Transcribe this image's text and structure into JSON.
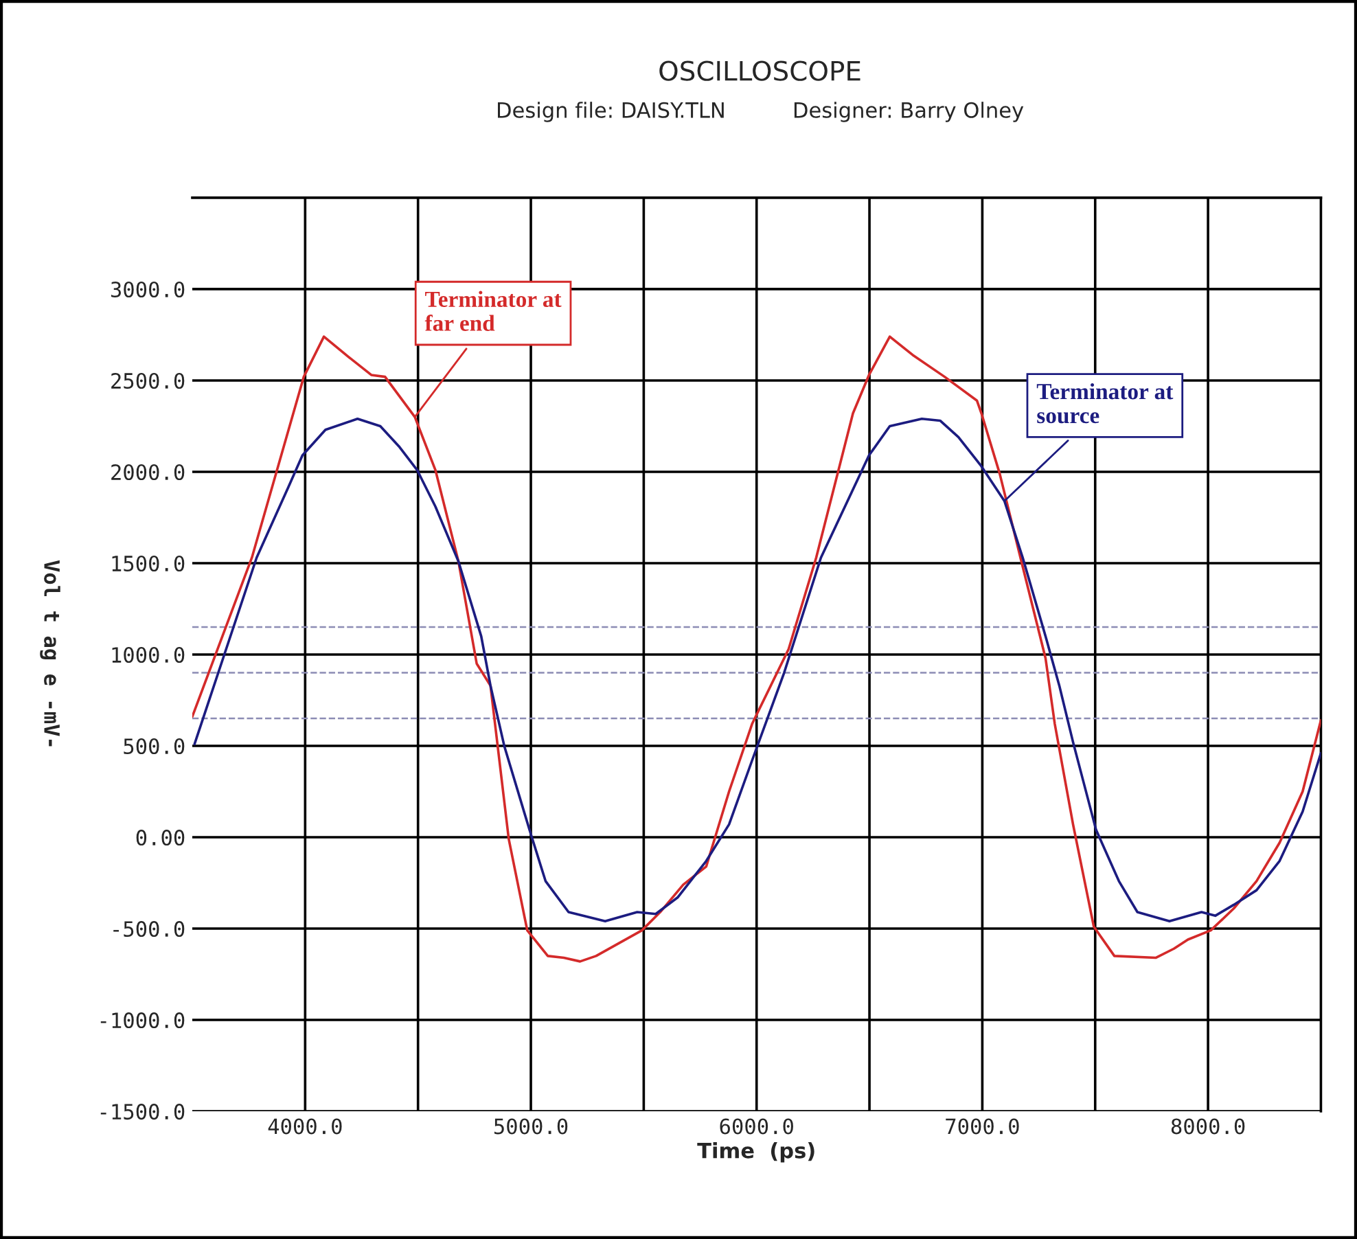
{
  "chart_data": {
    "type": "line",
    "title": "OSCILLOSCOPE",
    "subtitle": "Design file: DAISY.TLN          Designer: Barry Olney",
    "xlabel": "Time  (ps)",
    "ylabel": "Vol t ag e -mV-",
    "xlim": [
      3500,
      8500
    ],
    "ylim": [
      -1500,
      3500
    ],
    "xticks": [
      {
        "value": 4000,
        "label": "4000.0"
      },
      {
        "value": 4500,
        "label": null
      },
      {
        "value": 5000,
        "label": "5000.0"
      },
      {
        "value": 5500,
        "label": null
      },
      {
        "value": 6000,
        "label": "6000.0"
      },
      {
        "value": 6500,
        "label": null
      },
      {
        "value": 7000,
        "label": "7000.0"
      },
      {
        "value": 7500,
        "label": null
      },
      {
        "value": 8000,
        "label": "8000.0"
      }
    ],
    "yticks": [
      {
        "value": -1500,
        "label": "-1500.0"
      },
      {
        "value": -1000,
        "label": "-1000.0"
      },
      {
        "value": -500,
        "label": "-500.0"
      },
      {
        "value": 0,
        "label": "0.00"
      },
      {
        "value": 500,
        "label": "500.0"
      },
      {
        "value": 1000,
        "label": "1000.0"
      },
      {
        "value": 1500,
        "label": "1500.0"
      },
      {
        "value": 2000,
        "label": "2000.0"
      },
      {
        "value": 2500,
        "label": "2500.0"
      },
      {
        "value": 3000,
        "label": "3000.0"
      }
    ],
    "grid": true,
    "line_style": "solid",
    "ref_lines": [
      {
        "axis": "y",
        "value": 1150,
        "color": "#8c8cb4",
        "line_style": "dashed"
      },
      {
        "axis": "y",
        "value": 900,
        "color": "#8c8cb4",
        "line_style": "dashed"
      },
      {
        "axis": "y",
        "value": 650,
        "color": "#8c8cb4",
        "line_style": "dashed"
      }
    ],
    "series": [
      {
        "name": "Terminator at\nfar end",
        "color": "#d42a2a",
        "x": [
          3500,
          3764,
          3994,
          4083,
          4191,
          4293,
          4354,
          4486,
          4577,
          4679,
          4760,
          4821,
          4902,
          4984,
          5075,
          5146,
          5218,
          5289,
          5492,
          5573,
          5675,
          5777,
          5878,
          5980,
          6142,
          6264,
          6427,
          6498,
          6590,
          6691,
          6833,
          6976,
          6996,
          7077,
          7179,
          7280,
          7321,
          7402,
          7494,
          7585,
          7768,
          7849,
          7911,
          8012,
          8114,
          8215,
          8317,
          8419,
          8500
        ],
        "values": [
          660,
          1530,
          2520,
          2740,
          2630,
          2530,
          2520,
          2300,
          2010,
          1510,
          950,
          830,
          -10,
          -510,
          -650,
          -660,
          -680,
          -650,
          -510,
          -410,
          -260,
          -160,
          250,
          620,
          1030,
          1530,
          2320,
          2530,
          2740,
          2640,
          2520,
          2390,
          2320,
          1990,
          1480,
          980,
          620,
          70,
          -490,
          -650,
          -660,
          -610,
          -560,
          -510,
          -390,
          -240,
          -30,
          250,
          640
        ]
      },
      {
        "name": "Terminator at\nsource",
        "color": "#1c1c80",
        "x": [
          3510,
          3642,
          3785,
          3927,
          3988,
          4090,
          4232,
          4333,
          4415,
          4496,
          4577,
          4679,
          4780,
          4821,
          4882,
          4994,
          5065,
          5167,
          5329,
          5471,
          5553,
          5650,
          5777,
          5878,
          5980,
          6122,
          6285,
          6498,
          6590,
          6732,
          6813,
          6894,
          6996,
          7098,
          7179,
          7280,
          7341,
          7402,
          7504,
          7605,
          7687,
          7829,
          7971,
          8032,
          8114,
          8215,
          8317,
          8419,
          8500
        ],
        "values": [
          510,
          1000,
          1530,
          1920,
          2090,
          2230,
          2290,
          2250,
          2140,
          2010,
          1810,
          1510,
          1100,
          830,
          500,
          40,
          -240,
          -410,
          -460,
          -410,
          -420,
          -330,
          -130,
          70,
          420,
          900,
          1530,
          2090,
          2250,
          2290,
          2280,
          2190,
          2030,
          1840,
          1530,
          1100,
          830,
          520,
          40,
          -240,
          -410,
          -460,
          -410,
          -430,
          -370,
          -290,
          -130,
          140,
          460
        ]
      }
    ]
  }
}
